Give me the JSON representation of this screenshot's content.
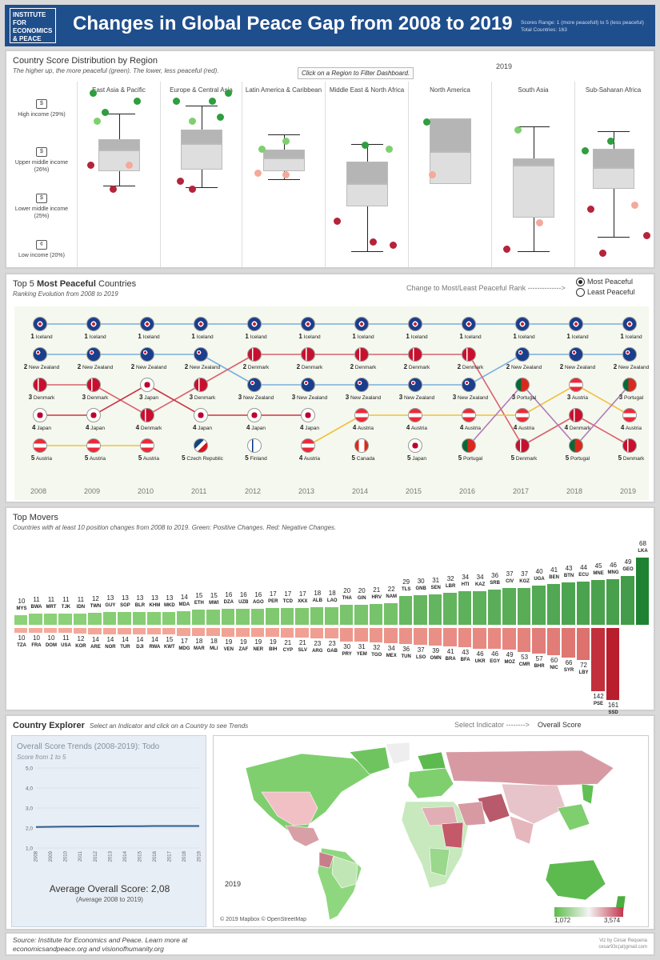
{
  "header": {
    "logo_lines": [
      "INSTITUTE FOR",
      "ECONOMICS",
      "& PEACE"
    ],
    "title": "Changes in Global Peace Gap from 2008 to 2019",
    "scores_range": "Scores Range: 1 (more peacefull) to 5 (less peaceful)",
    "total_countries": "Total Countries: 163"
  },
  "distribution": {
    "title": "Country Score Distribution by Region",
    "subtitle": "The higher up, the more peaceful (green). The lower, less peaceful (red).",
    "hint": "Click on a Region to Filter Dashboard.",
    "year": "2019",
    "income_levels": [
      "High income (29%)",
      "Upper middle income (26%)",
      "Lower middle income (25%)",
      "Low income (20%)"
    ],
    "regions": [
      "East Asia & Pacific",
      "Europe & Central Asia",
      "Latin America & Caribbean",
      "Middle East & North Africa",
      "North America",
      "South Asia",
      "Sub-Saharan Africa"
    ]
  },
  "ranking": {
    "title_prefix": "Top 5 ",
    "title_bold": "Most Peaceful",
    "title_suffix": " Countries",
    "subtitle": "Ranking Evolution from 2008 to 2019",
    "change_label": "Change to Most/Least Peaceful Rank -------------->",
    "option_most": "Most Peaceful",
    "option_least": "Least Peaceful",
    "years": [
      "2008",
      "2009",
      "2010",
      "2011",
      "2012",
      "2013",
      "2014",
      "2015",
      "2016",
      "2017",
      "2018",
      "2019"
    ],
    "table": [
      [
        {
          "r": "1",
          "c": "Iceland"
        },
        {
          "r": "2",
          "c": "New Zealand"
        },
        {
          "r": "3",
          "c": "Denmark"
        },
        {
          "r": "4",
          "c": "Japan"
        },
        {
          "r": "5",
          "c": "Austria"
        }
      ],
      [
        {
          "r": "1",
          "c": "Iceland"
        },
        {
          "r": "2",
          "c": "New Zealand"
        },
        {
          "r": "3",
          "c": "Denmark"
        },
        {
          "r": "4",
          "c": "Japan"
        },
        {
          "r": "5",
          "c": "Austria"
        }
      ],
      [
        {
          "r": "1",
          "c": "Iceland"
        },
        {
          "r": "2",
          "c": "New Zealand"
        },
        {
          "r": "3",
          "c": "Japan"
        },
        {
          "r": "4",
          "c": "Denmark"
        },
        {
          "r": "5",
          "c": "Austria"
        }
      ],
      [
        {
          "r": "1",
          "c": "Iceland"
        },
        {
          "r": "2",
          "c": "New Zealand"
        },
        {
          "r": "3",
          "c": "Denmark"
        },
        {
          "r": "4",
          "c": "Japan"
        },
        {
          "r": "5",
          "c": "Czech Republic"
        }
      ],
      [
        {
          "r": "1",
          "c": "Iceland"
        },
        {
          "r": "2",
          "c": "Denmark"
        },
        {
          "r": "3",
          "c": "New Zealand"
        },
        {
          "r": "4",
          "c": "Japan"
        },
        {
          "r": "5",
          "c": "Finland"
        }
      ],
      [
        {
          "r": "1",
          "c": "Iceland"
        },
        {
          "r": "2",
          "c": "Denmark"
        },
        {
          "r": "3",
          "c": "New Zealand"
        },
        {
          "r": "4",
          "c": "Japan"
        },
        {
          "r": "4",
          "c": "Austria"
        }
      ],
      [
        {
          "r": "1",
          "c": "Iceland"
        },
        {
          "r": "2",
          "c": "Denmark"
        },
        {
          "r": "3",
          "c": "New Zealand"
        },
        {
          "r": "4",
          "c": "Austria"
        },
        {
          "r": "5",
          "c": "Canada"
        }
      ],
      [
        {
          "r": "1",
          "c": "Iceland"
        },
        {
          "r": "2",
          "c": "Denmark"
        },
        {
          "r": "3",
          "c": "New Zealand"
        },
        {
          "r": "4",
          "c": "Austria"
        },
        {
          "r": "5",
          "c": "Japan"
        }
      ],
      [
        {
          "r": "1",
          "c": "Iceland"
        },
        {
          "r": "2",
          "c": "Denmark"
        },
        {
          "r": "3",
          "c": "New Zealand"
        },
        {
          "r": "4",
          "c": "Austria"
        },
        {
          "r": "5",
          "c": "Portugal"
        }
      ],
      [
        {
          "r": "1",
          "c": "Iceland"
        },
        {
          "r": "2",
          "c": "New Zealand"
        },
        {
          "r": "3",
          "c": "Portugal"
        },
        {
          "r": "4",
          "c": "Austria"
        },
        {
          "r": "5",
          "c": "Denmark"
        }
      ],
      [
        {
          "r": "1",
          "c": "Iceland"
        },
        {
          "r": "2",
          "c": "New Zealand"
        },
        {
          "r": "3",
          "c": "Austria"
        },
        {
          "r": "4",
          "c": "Denmark"
        },
        {
          "r": "5",
          "c": "Portugal"
        }
      ],
      [
        {
          "r": "1",
          "c": "Iceland"
        },
        {
          "r": "2",
          "c": "New Zealand"
        },
        {
          "r": "3",
          "c": "Portugal"
        },
        {
          "r": "4",
          "c": "Austria"
        },
        {
          "r": "5",
          "c": "Denmark"
        }
      ]
    ]
  },
  "movers": {
    "title": "Top Movers",
    "subtitle": "Countries with at least 10 position changes from 2008 to 2019. Green: Positive Changes. Red: Negative Changes.",
    "positive": [
      {
        "code": "MYS",
        "v": 10
      },
      {
        "code": "BWA",
        "v": 11
      },
      {
        "code": "MRT",
        "v": 11
      },
      {
        "code": "TJK",
        "v": 11
      },
      {
        "code": "IDN",
        "v": 11
      },
      {
        "code": "TWN",
        "v": 12
      },
      {
        "code": "GUY",
        "v": 13
      },
      {
        "code": "SGP",
        "v": 13
      },
      {
        "code": "BLR",
        "v": 13
      },
      {
        "code": "KHM",
        "v": 13
      },
      {
        "code": "MKD",
        "v": 13
      },
      {
        "code": "MDA",
        "v": 14
      },
      {
        "code": "ETH",
        "v": 15
      },
      {
        "code": "MWI",
        "v": 15
      },
      {
        "code": "DZA",
        "v": 16
      },
      {
        "code": "UZB",
        "v": 16
      },
      {
        "code": "AGO",
        "v": 16
      },
      {
        "code": "PER",
        "v": 17
      },
      {
        "code": "TCD",
        "v": 17
      },
      {
        "code": "XKX",
        "v": 17
      },
      {
        "code": "ALB",
        "v": 18
      },
      {
        "code": "LAO",
        "v": 18
      },
      {
        "code": "THA",
        "v": 20
      },
      {
        "code": "GIN",
        "v": 20
      },
      {
        "code": "HRV",
        "v": 21
      },
      {
        "code": "NAM",
        "v": 22
      },
      {
        "code": "TLS",
        "v": 29
      },
      {
        "code": "GNB",
        "v": 30
      },
      {
        "code": "SEN",
        "v": 31
      },
      {
        "code": "LBR",
        "v": 32
      },
      {
        "code": "HTI",
        "v": 34
      },
      {
        "code": "KAZ",
        "v": 34
      },
      {
        "code": "SRB",
        "v": 36
      },
      {
        "code": "CIV",
        "v": 37
      },
      {
        "code": "KGZ",
        "v": 37
      },
      {
        "code": "UGA",
        "v": 40
      },
      {
        "code": "BEN",
        "v": 41
      },
      {
        "code": "BTN",
        "v": 43
      },
      {
        "code": "ECU",
        "v": 44
      },
      {
        "code": "MNE",
        "v": 45
      },
      {
        "code": "MNG",
        "v": 46
      },
      {
        "code": "GEO",
        "v": 49
      },
      {
        "code": "LKA",
        "v": 68
      }
    ],
    "negative": [
      {
        "code": "TZA",
        "v": 10
      },
      {
        "code": "FRA",
        "v": 10
      },
      {
        "code": "DOM",
        "v": 10
      },
      {
        "code": "USA",
        "v": 11
      },
      {
        "code": "KOR",
        "v": 12
      },
      {
        "code": "ARE",
        "v": 14
      },
      {
        "code": "NOR",
        "v": 14
      },
      {
        "code": "TUR",
        "v": 14
      },
      {
        "code": "DJI",
        "v": 14
      },
      {
        "code": "RWA",
        "v": 14
      },
      {
        "code": "KWT",
        "v": 15
      },
      {
        "code": "MDG",
        "v": 17
      },
      {
        "code": "MAR",
        "v": 18
      },
      {
        "code": "MLI",
        "v": 18
      },
      {
        "code": "VEN",
        "v": 19
      },
      {
        "code": "ZAF",
        "v": 19
      },
      {
        "code": "NER",
        "v": 19
      },
      {
        "code": "BIH",
        "v": 19
      },
      {
        "code": "CYP",
        "v": 21
      },
      {
        "code": "SLV",
        "v": 21
      },
      {
        "code": "ARG",
        "v": 23
      },
      {
        "code": "GAB",
        "v": 23
      },
      {
        "code": "PRY",
        "v": 30
      },
      {
        "code": "YEM",
        "v": 31
      },
      {
        "code": "TGO",
        "v": 32
      },
      {
        "code": "MEX",
        "v": 34
      },
      {
        "code": "TUN",
        "v": 36
      },
      {
        "code": "LSO",
        "v": 37
      },
      {
        "code": "OMN",
        "v": 39
      },
      {
        "code": "BRA",
        "v": 41
      },
      {
        "code": "BFA",
        "v": 43
      },
      {
        "code": "UKR",
        "v": 46
      },
      {
        "code": "EGY",
        "v": 46
      },
      {
        "code": "MOZ",
        "v": 49
      },
      {
        "code": "CMR",
        "v": 53
      },
      {
        "code": "BHR",
        "v": 57
      },
      {
        "code": "NIC",
        "v": 60
      },
      {
        "code": "SYR",
        "v": 66
      },
      {
        "code": "LBY",
        "v": 72
      },
      {
        "code": "PSE",
        "v": 142
      },
      {
        "code": "SSD",
        "v": 161
      }
    ]
  },
  "explorer": {
    "title": "Country Explorer",
    "instruction": "Select an Indicator and click on a Country to see Trends",
    "select_label": "Select Indicator -------->",
    "indicator": "Overall Score",
    "trend_title": "Overall Score Trends (2008-2019): Todo",
    "trend_sub": "Score from 1 to 5",
    "yticks": [
      "5,0",
      "4,0",
      "3,0",
      "2,0",
      "1,0"
    ],
    "avg_label": "Average Overall Score: 2,08",
    "avg_note": "(Average 2008 to 2019)",
    "map_year": "2019",
    "map_credit": "© 2019 Mapbox © OpenStreetMap",
    "legend_min": "1,072",
    "legend_max": "3,574"
  },
  "chart_data": {
    "type": "line",
    "title": "Overall Score Trends (2008-2019): Todo",
    "x": [
      "2008",
      "2009",
      "2010",
      "2011",
      "2012",
      "2013",
      "2014",
      "2015",
      "2016",
      "2017",
      "2018",
      "2019"
    ],
    "series": [
      {
        "values": [
          2.05,
          2.06,
          2.07,
          2.07,
          2.08,
          2.08,
          2.09,
          2.09,
          2.1,
          2.1,
          2.1,
          2.1
        ]
      }
    ],
    "ylim": [
      1,
      5
    ]
  },
  "footer": {
    "source_line1": "Source: Institute for Economics and Peace. Learn more at",
    "source_line2": "economicsandpeace.org and visionofhumanity.org",
    "credit1": "Viz by César Requena",
    "credit2": "cesar93c(at)gmail.com"
  },
  "colors": {
    "header": "#1f4e8c",
    "green": "#2e9e3e",
    "red": "#b5243a",
    "lightgreen": "#8ad07f",
    "lightred": "#f4a99a"
  }
}
